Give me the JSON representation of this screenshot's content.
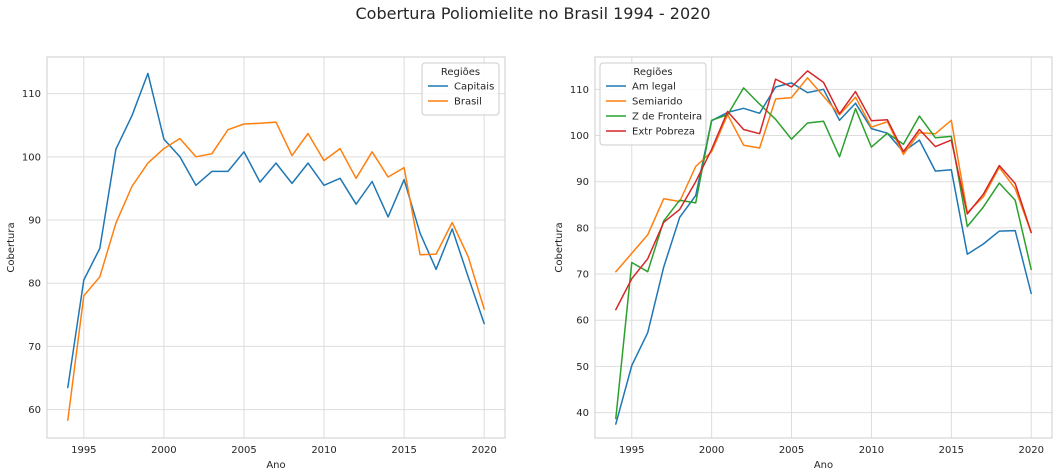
{
  "suptitle": "Cobertura Poliomielite no Brasil 1994 - 2020",
  "chart_data": [
    {
      "type": "line",
      "title": "",
      "xlabel": "Ano",
      "ylabel": "Cobertura",
      "xlim": [
        1992.7,
        2021.3
      ],
      "ylim": [
        55.5,
        115.8
      ],
      "xticks": [
        1995,
        2000,
        2005,
        2010,
        2015,
        2020
      ],
      "yticks": [
        60,
        70,
        80,
        90,
        100,
        110
      ],
      "grid": true,
      "legend": {
        "title": "Regiões",
        "placement": "top-right"
      },
      "x": [
        1994,
        1995,
        1996,
        1997,
        1998,
        1999,
        2000,
        2001,
        2002,
        2003,
        2004,
        2005,
        2006,
        2007,
        2008,
        2009,
        2010,
        2011,
        2012,
        2013,
        2014,
        2015,
        2016,
        2017,
        2018,
        2019,
        2020
      ],
      "series": [
        {
          "name": "Capitais",
          "color": "#1f77b4",
          "values": [
            63.5,
            80.5,
            85.5,
            101.2,
            106.5,
            113.2,
            102.8,
            100.0,
            95.5,
            97.7,
            97.7,
            100.8,
            96.0,
            99.0,
            95.8,
            99.0,
            95.5,
            96.6,
            92.5,
            96.1,
            90.5,
            96.4,
            87.9,
            82.2,
            88.6,
            81.0,
            73.6
          ]
        },
        {
          "name": "Brasil",
          "color": "#ff7f0e",
          "values": [
            58.3,
            78.0,
            81.0,
            89.5,
            95.3,
            99.0,
            101.3,
            102.9,
            100.0,
            100.5,
            104.3,
            105.2,
            105.3,
            105.5,
            100.2,
            103.7,
            99.4,
            101.3,
            96.6,
            100.8,
            96.8,
            98.3,
            84.5,
            84.6,
            89.6,
            84.2,
            75.9
          ]
        }
      ]
    },
    {
      "type": "line",
      "title": "",
      "xlabel": "Ano",
      "ylabel": "Cobertura",
      "xlim": [
        1992.7,
        2021.3
      ],
      "ylim": [
        34.5,
        117.0
      ],
      "xticks": [
        1995,
        2000,
        2005,
        2010,
        2015,
        2020
      ],
      "yticks": [
        40,
        50,
        60,
        70,
        80,
        90,
        100,
        110
      ],
      "grid": true,
      "legend": {
        "title": "Regiões",
        "placement": "top-left"
      },
      "x": [
        1994,
        1995,
        1996,
        1997,
        1998,
        1999,
        2000,
        2001,
        2002,
        2003,
        2004,
        2005,
        2006,
        2007,
        2008,
        2009,
        2010,
        2011,
        2012,
        2013,
        2014,
        2015,
        2016,
        2017,
        2018,
        2019,
        2020
      ],
      "series": [
        {
          "name": "Am legal",
          "color": "#1f77b4",
          "values": [
            37.5,
            50.2,
            57.3,
            71.5,
            82.3,
            87.0,
            103.2,
            105.0,
            105.9,
            104.8,
            110.5,
            111.4,
            109.3,
            110.0,
            103.3,
            107.0,
            101.5,
            100.5,
            96.5,
            99.0,
            92.3,
            92.6,
            74.3,
            76.5,
            79.3,
            79.4,
            65.8
          ]
        },
        {
          "name": "Semiarido",
          "color": "#ff7f0e",
          "values": [
            70.5,
            74.5,
            78.5,
            86.3,
            85.7,
            93.3,
            96.5,
            104.5,
            97.9,
            97.3,
            107.9,
            108.2,
            112.5,
            108.5,
            104.5,
            108.3,
            101.8,
            103.0,
            95.9,
            100.6,
            100.4,
            103.3,
            83.3,
            86.7,
            93.1,
            88.5,
            79.0
          ]
        },
        {
          "name": "Z de Fronteira",
          "color": "#2ca02c",
          "values": [
            38.7,
            72.5,
            70.5,
            81.5,
            86.0,
            85.4,
            103.3,
            104.5,
            110.3,
            106.8,
            103.5,
            99.2,
            102.7,
            103.1,
            95.4,
            105.8,
            97.5,
            100.5,
            98.1,
            104.2,
            99.5,
            99.8,
            80.3,
            84.5,
            89.7,
            86.0,
            71.0
          ]
        },
        {
          "name": "Extr Pobreza",
          "color": "#d62728",
          "values": [
            62.3,
            69.0,
            73.3,
            81.2,
            84.0,
            90.0,
            97.0,
            105.2,
            101.3,
            100.4,
            112.2,
            110.5,
            114.0,
            111.5,
            104.7,
            109.5,
            103.2,
            103.4,
            96.5,
            101.3,
            97.6,
            99.0,
            83.0,
            87.3,
            93.5,
            89.6,
            79.0
          ]
        }
      ]
    }
  ]
}
